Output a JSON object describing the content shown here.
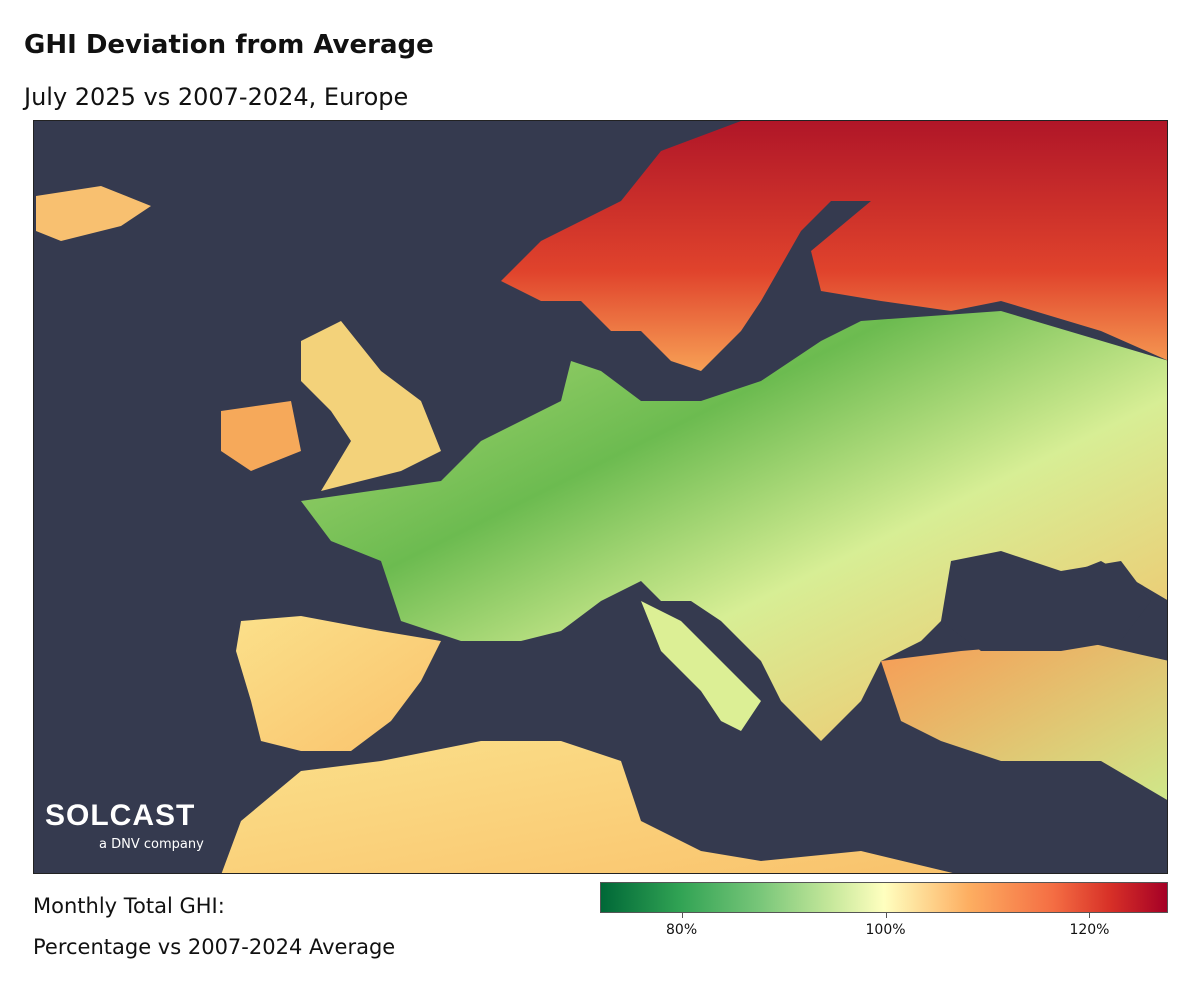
{
  "title": "GHI Deviation from Average",
  "subtitle": "July 2025 vs 2007-2024, Europe",
  "map": {
    "background_color": "#353a4f",
    "region": "Europe",
    "logo": {
      "brand": "SOLCAST",
      "tagline": "a DNV company"
    }
  },
  "legend": {
    "label_line1": "Monthly Total GHI:",
    "label_line2": "Percentage vs 2007-2024 Average",
    "colormap": [
      "#006837",
      "#78c679",
      "#ffffbf",
      "#fdae61",
      "#d73027",
      "#a50026"
    ],
    "range_percent": [
      72,
      127.7
    ],
    "ticks": [
      {
        "value": 80,
        "label": "80%"
      },
      {
        "value": 100,
        "label": "100%"
      },
      {
        "value": 120,
        "label": "120%"
      }
    ]
  }
}
